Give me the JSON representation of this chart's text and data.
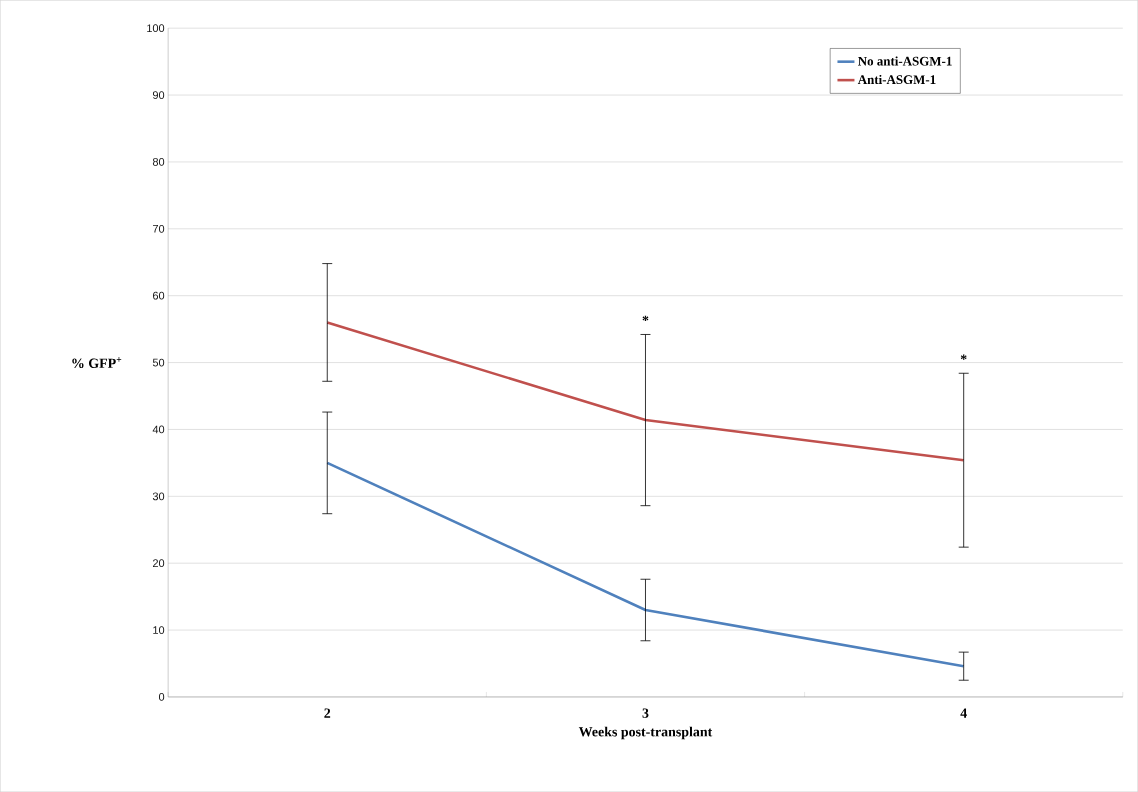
{
  "chart_data": {
    "type": "line",
    "xlabel": "Weeks post-transplant",
    "ylabel": "% GFP$^{+}$",
    "categories": [
      "2",
      "3",
      "4"
    ],
    "series": [
      {
        "name": "No anti-ASGM-1",
        "color": "#4f81bd",
        "values": [
          35.0,
          13.0,
          4.6
        ],
        "errors": [
          7.6,
          4.6,
          2.1
        ]
      },
      {
        "name": "Anti-ASGM-1",
        "color": "#c0504d",
        "values": [
          56.0,
          41.4,
          35.4
        ],
        "errors": [
          8.8,
          12.8,
          13.0
        ]
      }
    ],
    "annotations": [
      "*",
      "*"
    ],
    "ylim": [
      0,
      100
    ],
    "yticks": [
      0,
      10,
      20,
      30,
      40,
      50,
      60,
      70,
      80,
      90,
      100
    ],
    "grid": "y",
    "legend": "top right",
    "marker": "none",
    "line_style": "solid"
  }
}
